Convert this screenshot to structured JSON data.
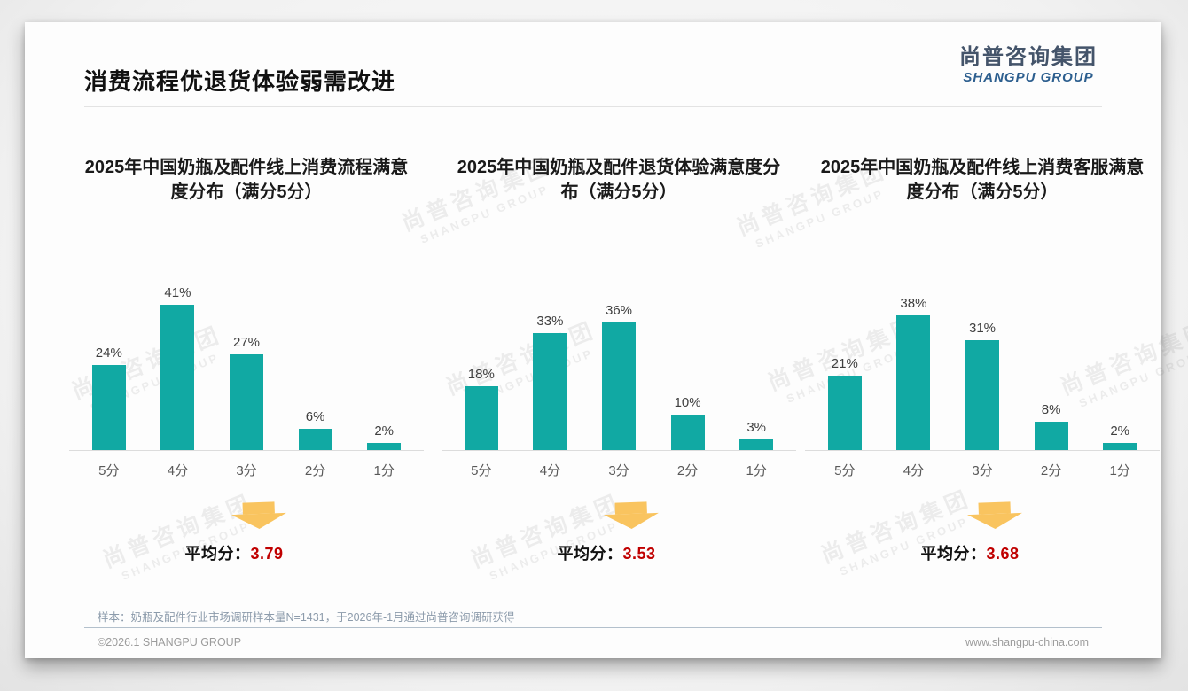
{
  "page": {
    "title": "消费流程优退货体验弱需改进",
    "logo_cn": "尚普咨询集团",
    "logo_en": "SHANGPU GROUP",
    "watermark_cn": "尚普咨询集团",
    "watermark_en": "SHANGPU GROUP",
    "footnote": "样本：奶瓶及配件行业市场调研样本量N=1431，于2026年-1月通过尚普咨询调研获得",
    "footer_left": "©2026.1 SHANGPU GROUP",
    "footer_right": "www.shangpu-china.com"
  },
  "colors": {
    "bar": "#11A9A3",
    "arrow": "#F9C45F",
    "avg_value": "#C00000",
    "logo_cn": "#44546A",
    "logo_en": "#2D5F8F"
  },
  "chart_data": [
    {
      "type": "bar",
      "title": "2025年中国奶瓶及配件线上消费流程满意度分布（满分5分）",
      "categories": [
        "5分",
        "4分",
        "3分",
        "2分",
        "1分"
      ],
      "values": [
        24,
        41,
        27,
        6,
        2
      ],
      "unit": "%",
      "ylim": [
        0,
        50
      ],
      "grid": false,
      "avg_label": "平均分：",
      "avg_value": "3.79"
    },
    {
      "type": "bar",
      "title": "2025年中国奶瓶及配件退货体验满意度分布（满分5分）",
      "categories": [
        "5分",
        "4分",
        "3分",
        "2分",
        "1分"
      ],
      "values": [
        18,
        33,
        36,
        10,
        3
      ],
      "unit": "%",
      "ylim": [
        0,
        50
      ],
      "grid": false,
      "avg_label": "平均分：",
      "avg_value": "3.53"
    },
    {
      "type": "bar",
      "title": "2025年中国奶瓶及配件线上消费客服满意度分布（满分5分）",
      "categories": [
        "5分",
        "4分",
        "3分",
        "2分",
        "1分"
      ],
      "values": [
        21,
        38,
        31,
        8,
        2
      ],
      "unit": "%",
      "ylim": [
        0,
        50
      ],
      "grid": false,
      "avg_label": "平均分：",
      "avg_value": "3.68"
    }
  ]
}
